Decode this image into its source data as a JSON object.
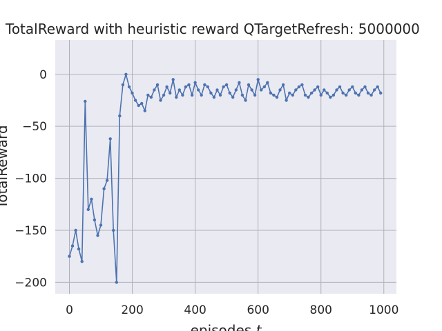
{
  "chart_data": {
    "type": "line",
    "title": "TotalReward with heuristic reward QTargetRefresh: 5000000",
    "xlabel": "episodes ",
    "xlabel_var": "t",
    "ylabel": "TotalReward",
    "xlim": [
      -45,
      1040
    ],
    "ylim": [
      -211,
      33
    ],
    "xticks": [
      0,
      200,
      400,
      600,
      800,
      1000
    ],
    "yticks": [
      -200,
      -150,
      -100,
      -50,
      0
    ],
    "x_tick_labels": [
      "0",
      "200",
      "400",
      "600",
      "800",
      "1000"
    ],
    "y_tick_labels": [
      "−200",
      "−150",
      "−100",
      "−50",
      "0"
    ],
    "grid": true,
    "colors": {
      "series": "#4c72b0",
      "background": "#eaeaf2",
      "grid": "#b0b0b8"
    },
    "series": [
      {
        "marker": "circle",
        "x_start": 0,
        "x_step": 10,
        "values": [
          -175,
          -165,
          -150,
          -168,
          -180,
          -26,
          -130,
          -120,
          -140,
          -155,
          -145,
          -110,
          -102,
          -62,
          -150,
          -200,
          -40,
          -10,
          0,
          -12,
          -18,
          -25,
          -30,
          -28,
          -35,
          -20,
          -22,
          -15,
          -10,
          -25,
          -20,
          -12,
          -18,
          -5,
          -22,
          -15,
          -20,
          -12,
          -10,
          -20,
          -8,
          -15,
          -20,
          -10,
          -12,
          -18,
          -22,
          -15,
          -20,
          -12,
          -10,
          -18,
          -22,
          -15,
          -8,
          -20,
          -25,
          -10,
          -15,
          -20,
          -5,
          -15,
          -12,
          -8,
          -18,
          -20,
          -22,
          -15,
          -10,
          -25,
          -18,
          -20,
          -15,
          -12,
          -10,
          -20,
          -22,
          -18,
          -15,
          -12,
          -20,
          -15,
          -18,
          -22,
          -20,
          -15,
          -12,
          -18,
          -20,
          -15,
          -12,
          -18,
          -20,
          -15,
          -12,
          -18,
          -20,
          -15,
          -12,
          -18
        ]
      }
    ]
  }
}
